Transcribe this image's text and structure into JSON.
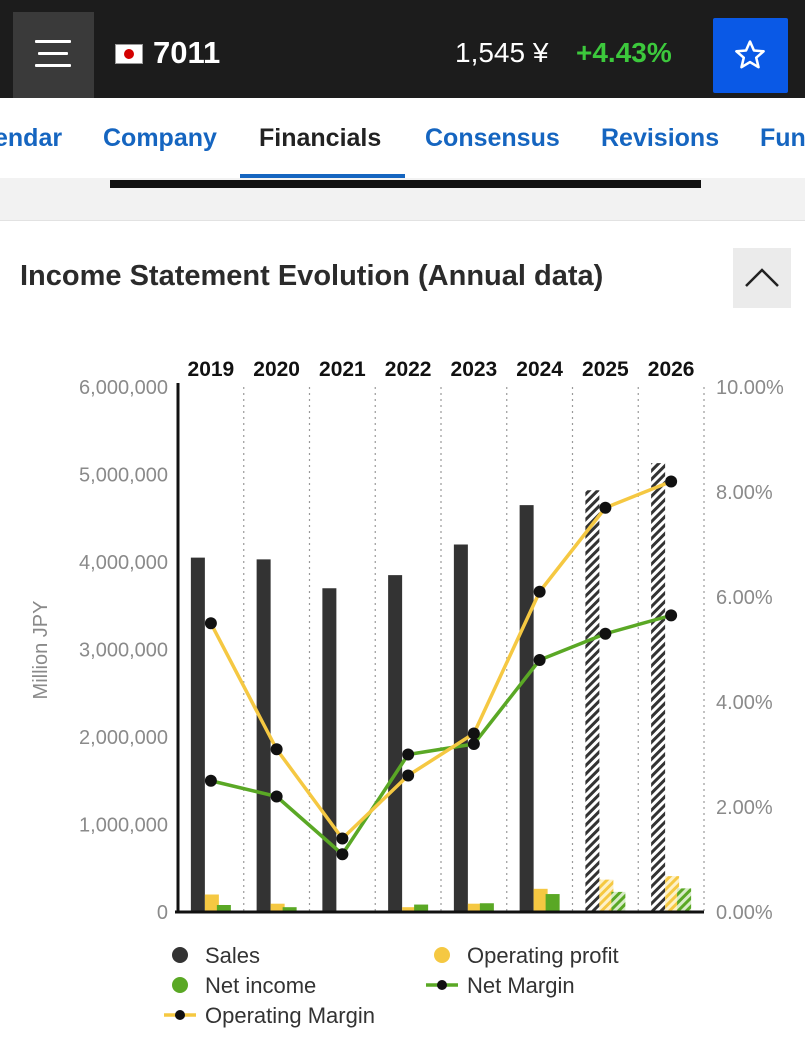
{
  "header": {
    "ticker": "7011",
    "price": "1,545",
    "currency": "¥",
    "change": "+4.43%",
    "icons": {
      "menu": "menu-icon",
      "flag": "japan-flag-icon",
      "favorite": "star-icon"
    }
  },
  "tabs": [
    {
      "label": "endar",
      "active": false
    },
    {
      "label": "Company",
      "active": false
    },
    {
      "label": "Financials",
      "active": true
    },
    {
      "label": "Consensus",
      "active": false
    },
    {
      "label": "Revisions",
      "active": false
    },
    {
      "label": "Fun",
      "active": false
    }
  ],
  "card": {
    "title": "Income Statement Evolution (Annual data)",
    "collapse_icon": "chevron-up-icon"
  },
  "colors": {
    "sales": "#333333",
    "operating_profit": "#f5c842",
    "net_income": "#5aa825",
    "accent_blue": "#0a59e6",
    "positive": "#3cc83c"
  },
  "chart_data": {
    "type": "bar",
    "categories": [
      "2019",
      "2020",
      "2021",
      "2022",
      "2023",
      "2024",
      "2025",
      "2026"
    ],
    "forecast_from": "2025",
    "ylabel": "Million JPY",
    "ylim": [
      0,
      6000000
    ],
    "y2lim": [
      0,
      10
    ],
    "y_ticks": [
      "0",
      "1,000,000",
      "2,000,000",
      "3,000,000",
      "4,000,000",
      "5,000,000",
      "6,000,000"
    ],
    "y2_ticks": [
      "0.00%",
      "2.00%",
      "4.00%",
      "6.00%",
      "8.00%",
      "10.00%"
    ],
    "series": [
      {
        "name": "Sales",
        "kind": "bar",
        "axis": "left",
        "values": [
          4050000,
          4030000,
          3700000,
          3850000,
          4200000,
          4650000,
          4820000,
          5130000
        ]
      },
      {
        "name": "Operating profit",
        "kind": "bar",
        "axis": "left",
        "values": [
          200000,
          95000,
          0,
          55000,
          95000,
          265000,
          370000,
          410000
        ]
      },
      {
        "name": "Net income",
        "kind": "bar",
        "axis": "left",
        "values": [
          80000,
          55000,
          0,
          85000,
          100000,
          205000,
          230000,
          270000
        ]
      },
      {
        "name": "Net Margin",
        "kind": "line",
        "axis": "right",
        "values": [
          2.5,
          2.2,
          1.1,
          3.0,
          3.2,
          4.8,
          5.3,
          5.65
        ]
      },
      {
        "name": "Operating Margin",
        "kind": "line",
        "axis": "right",
        "values": [
          5.5,
          3.1,
          1.4,
          2.6,
          3.4,
          6.1,
          7.7,
          8.2
        ]
      }
    ],
    "legend": {
      "placement": "bottom",
      "order": [
        "Sales",
        "Operating profit",
        "Net income",
        "Net Margin",
        "Operating Margin"
      ]
    },
    "grid": "vertical dotted"
  }
}
